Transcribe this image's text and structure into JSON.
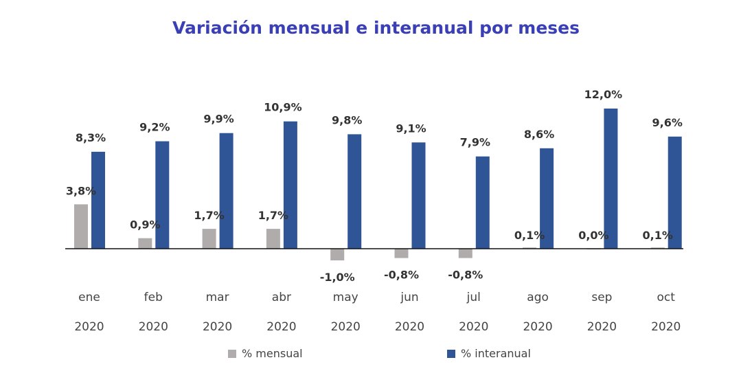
{
  "chart_data": {
    "type": "bar",
    "title": "Variación mensual e interanual por meses",
    "categories": [
      "ene",
      "feb",
      "mar",
      "abr",
      "may",
      "jun",
      "jul",
      "ago",
      "sep",
      "oct"
    ],
    "categories_year": [
      "2020",
      "2020",
      "2020",
      "2020",
      "2020",
      "2020",
      "2020",
      "2020",
      "2020",
      "2020"
    ],
    "series": [
      {
        "name": "% mensual",
        "color": "#b0acac",
        "values": [
          3.8,
          0.9,
          1.7,
          1.7,
          -1.0,
          -0.8,
          -0.8,
          0.1,
          0.0,
          0.1
        ],
        "labels": [
          "3,8%",
          "0,9%",
          "1,7%",
          "1,7%",
          "-1,0%",
          "-0,8%",
          "-0,8%",
          "0,1%",
          "0,0%",
          "0,1%"
        ]
      },
      {
        "name": "% interanual",
        "color": "#2f5597",
        "values": [
          8.3,
          9.2,
          9.9,
          10.9,
          9.8,
          9.1,
          7.9,
          8.6,
          12.0,
          9.6
        ],
        "labels": [
          "8,3%",
          "9,2%",
          "9,9%",
          "10,9%",
          "9,8%",
          "9,1%",
          "7,9%",
          "8,6%",
          "12,0%",
          "9,6%"
        ]
      }
    ],
    "legend_position": "bottom",
    "grid": false,
    "zero_line": true
  }
}
